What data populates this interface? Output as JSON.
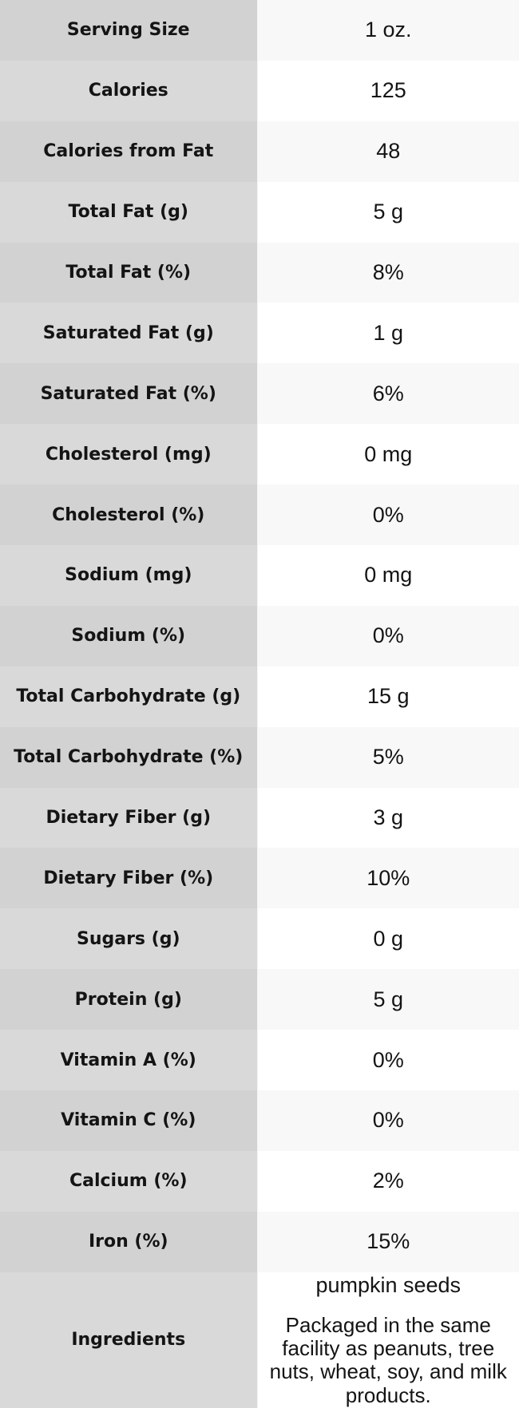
{
  "chart_data": {
    "type": "table",
    "rows": [
      {
        "label": "Serving Size",
        "value": "1 oz."
      },
      {
        "label": "Calories",
        "value": "125"
      },
      {
        "label": "Calories from Fat",
        "value": "48"
      },
      {
        "label": "Total Fat (g)",
        "value": "5 g"
      },
      {
        "label": "Total Fat (%)",
        "value": "8%"
      },
      {
        "label": "Saturated Fat (g)",
        "value": "1 g"
      },
      {
        "label": "Saturated Fat (%)",
        "value": "6%"
      },
      {
        "label": "Cholesterol (mg)",
        "value": "0 mg"
      },
      {
        "label": "Cholesterol (%)",
        "value": "0%"
      },
      {
        "label": "Sodium (mg)",
        "value": "0 mg"
      },
      {
        "label": "Sodium (%)",
        "value": "0%"
      },
      {
        "label": "Total Carbohydrate (g)",
        "value": "15 g"
      },
      {
        "label": "Total Carbohydrate (%)",
        "value": "5%"
      },
      {
        "label": "Dietary Fiber (g)",
        "value": "3 g"
      },
      {
        "label": "Dietary Fiber (%)",
        "value": "10%"
      },
      {
        "label": "Sugars (g)",
        "value": "0 g"
      },
      {
        "label": "Protein (g)",
        "value": "5 g"
      },
      {
        "label": "Vitamin A (%)",
        "value": "0%"
      },
      {
        "label": "Vitamin C (%)",
        "value": "0%"
      },
      {
        "label": "Calcium (%)",
        "value": "2%"
      },
      {
        "label": "Iron (%)",
        "value": "15%"
      },
      {
        "label": "Ingredients",
        "value_primary": "pumpkin seeds",
        "value_note": "Packaged in the same facility as peanuts, tree nuts, wheat, soy, and milk products."
      }
    ]
  },
  "theme": {
    "label-col-bg-odd": "#d2d2d2",
    "label-col-bg-even": "#d9d9d9",
    "value-col-bg-odd": "#f8f8f8",
    "value-col-bg-even": "#ffffff",
    "text-color": "#141414"
  }
}
